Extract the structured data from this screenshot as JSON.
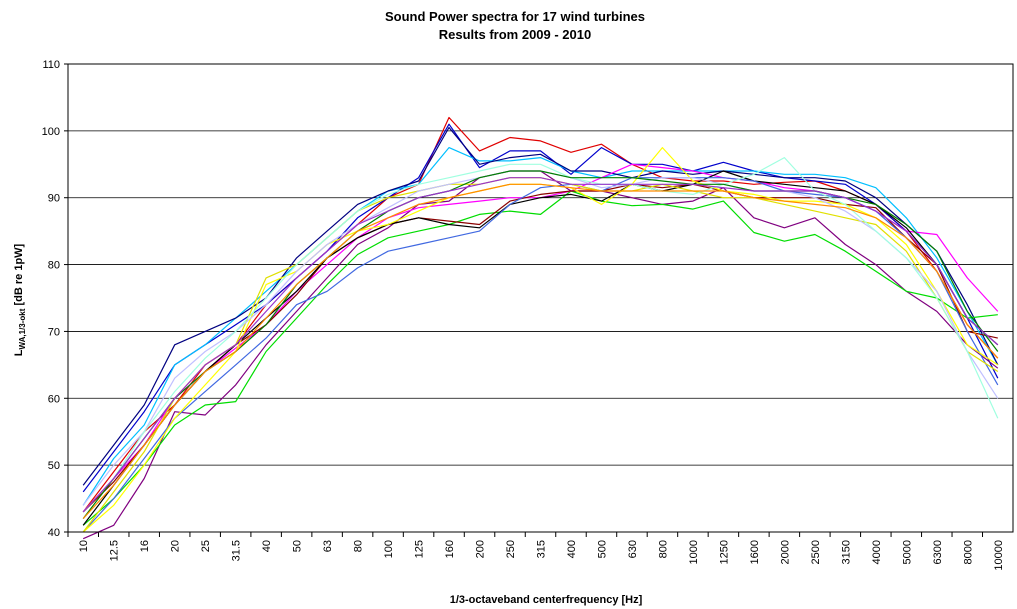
{
  "chart_data": {
    "type": "line",
    "title": "Sound Power spectra for 17 wind turbines",
    "subtitle": "Results from 2009 - 2010",
    "xlabel": "1/3-octaveband centerfrequency [Hz]",
    "ylabel": {
      "main": "L",
      "sub": "WA,1/3-okt",
      "rest": " [dB re 1pW]"
    },
    "ylim": [
      40,
      110
    ],
    "yticks": [
      40,
      50,
      60,
      70,
      80,
      90,
      100,
      110
    ],
    "grid": true,
    "categories": [
      "10",
      "12.5",
      "16",
      "20",
      "25",
      "31.5",
      "40",
      "50",
      "63",
      "80",
      "100",
      "125",
      "160",
      "200",
      "250",
      "315",
      "400",
      "500",
      "630",
      "800",
      "1000",
      "1250",
      "1600",
      "2000",
      "2500",
      "3150",
      "4000",
      "5000",
      "6300",
      "8000",
      "10000"
    ],
    "series": [
      {
        "color": "#e00000",
        "values": [
          43,
          49,
          55,
          59,
          65,
          68,
          74,
          78,
          82,
          86,
          90,
          92,
          102,
          97,
          99,
          98.5,
          96.8,
          98,
          95,
          93,
          92.5,
          92.5,
          92,
          92.3,
          92.5,
          91,
          89,
          85,
          79,
          71,
          66
        ]
      },
      {
        "color": "#0000cc",
        "values": [
          46,
          52,
          58,
          65,
          68,
          71,
          74,
          78,
          82,
          87,
          90,
          93,
          101,
          94.5,
          97,
          97,
          93.5,
          97.5,
          95,
          95,
          94,
          95.3,
          94,
          93,
          92.5,
          92,
          89,
          85,
          80,
          72,
          63
        ]
      },
      {
        "color": "#00bfff",
        "values": [
          44,
          51,
          56,
          65,
          68,
          72,
          76,
          80,
          84,
          88,
          91,
          92,
          97.5,
          95.5,
          95.5,
          96,
          94,
          93,
          94,
          94,
          94,
          94,
          94,
          93.5,
          93.5,
          93,
          91.5,
          87,
          81,
          73,
          65
        ]
      },
      {
        "color": "#000080",
        "values": [
          47,
          53,
          59,
          68,
          70,
          72,
          75,
          81,
          85,
          89,
          91,
          92.5,
          100.5,
          95,
          96,
          96.5,
          94,
          94,
          93,
          94,
          93.5,
          94,
          93.5,
          93,
          93,
          92.5,
          90,
          86,
          82,
          74,
          65
        ]
      },
      {
        "color": "#800080",
        "values": [
          39,
          41,
          48,
          58,
          57.5,
          62,
          68,
          73,
          78,
          83,
          85.5,
          89,
          89.5,
          93,
          94,
          94,
          91,
          91,
          90,
          89,
          89.5,
          91.5,
          87,
          85.5,
          87,
          83,
          80,
          76,
          73,
          68,
          64.5
        ]
      },
      {
        "color": "#00dd00",
        "values": [
          41,
          45,
          50,
          56,
          59,
          59.5,
          67,
          72,
          77,
          81.5,
          84,
          85,
          86,
          87.5,
          88,
          87.5,
          91,
          89.5,
          88.8,
          89,
          88.3,
          89.5,
          84.8,
          83.5,
          84.5,
          82,
          79,
          76,
          75,
          72,
          72.5
        ]
      },
      {
        "color": "#ff00ff",
        "values": [
          43,
          48,
          53,
          60,
          64,
          67.5,
          71,
          76,
          80,
          84,
          87,
          88.5,
          89,
          89.5,
          90,
          90,
          91,
          93,
          95,
          94.5,
          94,
          93,
          92.5,
          91.5,
          91,
          90,
          88,
          85,
          84.5,
          78,
          73
        ]
      },
      {
        "color": "#8b0000",
        "values": [
          43,
          47.5,
          53,
          59,
          64,
          68,
          71,
          75.5,
          81,
          84,
          86,
          87,
          86.5,
          86,
          89.5,
          90.5,
          91,
          91,
          92,
          91.5,
          92,
          91,
          90,
          90,
          90,
          89,
          88.5,
          84,
          80,
          70,
          69
        ]
      },
      {
        "color": "#000000",
        "values": [
          41,
          47,
          53,
          59,
          64,
          68,
          72,
          76,
          81,
          84,
          86,
          87,
          86,
          85.5,
          89,
          90,
          90.5,
          89.5,
          92,
          91,
          92,
          94,
          92.5,
          92,
          91.5,
          91,
          89,
          85.5,
          80,
          72,
          68
        ]
      },
      {
        "color": "#4169e1",
        "values": [
          40,
          45,
          51,
          57,
          61,
          65,
          69,
          74,
          76,
          79.5,
          82,
          83,
          84,
          85,
          89,
          91.5,
          92,
          91,
          93,
          93,
          93,
          93,
          92.5,
          91,
          90.5,
          90,
          88,
          84,
          79,
          70,
          62
        ]
      },
      {
        "color": "#ffff00",
        "values": [
          40,
          44,
          50,
          57,
          62,
          67,
          77,
          79,
          83,
          85,
          86,
          88,
          90,
          91,
          92,
          92,
          91.5,
          89,
          92,
          97.5,
          92.5,
          91,
          90.5,
          89.5,
          89.5,
          89,
          87,
          83,
          76,
          68,
          65
        ]
      },
      {
        "color": "#e0e000",
        "values": [
          40,
          46,
          52,
          60,
          65,
          68,
          78,
          80,
          84,
          88,
          90,
          91,
          92,
          92,
          93,
          93,
          92,
          91,
          91,
          92,
          91,
          90,
          90,
          89,
          88,
          87,
          86,
          82,
          75,
          67,
          64
        ]
      },
      {
        "color": "#c0c0ff",
        "values": [
          44,
          50,
          55,
          63,
          67,
          70,
          74,
          79,
          83,
          86,
          88.5,
          91,
          92,
          93,
          94,
          94,
          93,
          91.5,
          92,
          93,
          93,
          92,
          91,
          91,
          90,
          88,
          85,
          81,
          76,
          67,
          60
        ]
      },
      {
        "color": "#a0ffe0",
        "values": [
          43,
          48,
          55,
          61,
          66,
          70,
          75,
          80,
          84,
          88,
          90.5,
          92,
          93,
          94,
          95,
          95,
          93,
          92,
          92,
          91,
          90.5,
          92,
          93.5,
          96,
          91,
          89,
          85,
          81,
          75,
          67,
          57
        ]
      },
      {
        "color": "#008000",
        "values": [
          42,
          48,
          54,
          60,
          64,
          67,
          71,
          77,
          81,
          85,
          88,
          90,
          91,
          93,
          94,
          94,
          93,
          93,
          93,
          92.5,
          92,
          92,
          91,
          91,
          91,
          90,
          89,
          86,
          82,
          73,
          67
        ]
      },
      {
        "color": "#ff8c00",
        "values": [
          42,
          47,
          53,
          59,
          64,
          67,
          72,
          77,
          81,
          85,
          87,
          89,
          90,
          91,
          92,
          92,
          91.5,
          91,
          91,
          91,
          91,
          91,
          90,
          89.5,
          89,
          88.5,
          87,
          84,
          79,
          71,
          66
        ]
      },
      {
        "color": "#9932cc",
        "values": [
          43,
          48,
          54,
          60,
          65,
          68,
          73,
          78,
          82,
          86,
          88,
          90,
          91,
          92,
          93,
          93,
          92,
          92,
          92,
          92,
          92,
          91.5,
          91,
          91,
          91,
          90,
          88,
          85,
          80,
          72,
          68
        ]
      }
    ]
  }
}
